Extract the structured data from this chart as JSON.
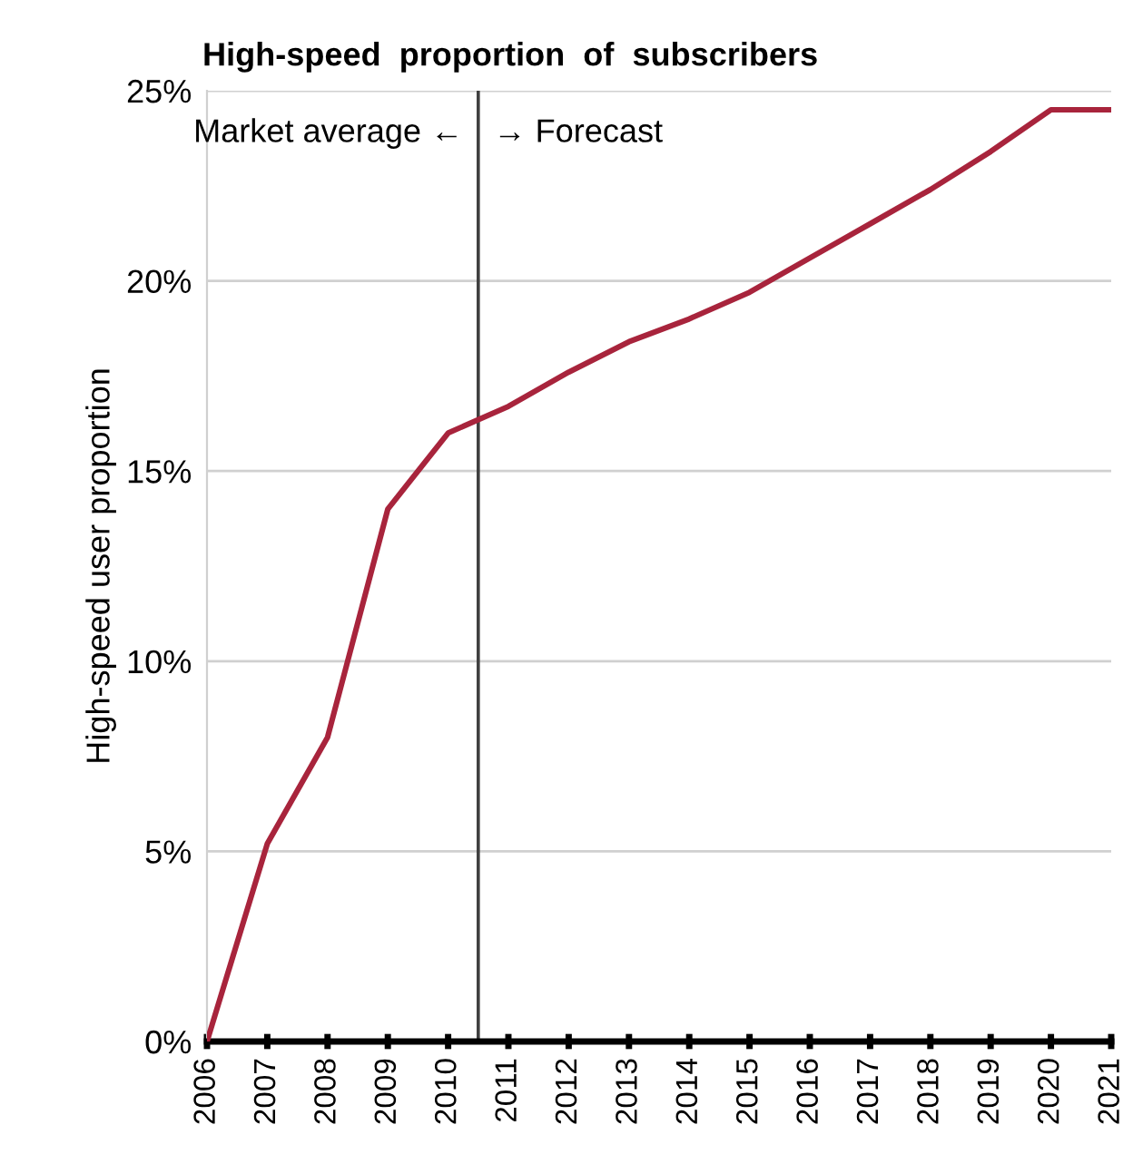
{
  "chart_data": {
    "type": "line",
    "title": "High-speed  proportion  of  subscribers",
    "ylabel": "High-speed user proportion",
    "x": [
      2006,
      2007,
      2008,
      2009,
      2010,
      2011,
      2012,
      2013,
      2014,
      2015,
      2016,
      2017,
      2018,
      2019,
      2020,
      2021
    ],
    "series": [
      {
        "color": "#a8243c",
        "values": [
          0,
          5.2,
          8.0,
          14.0,
          16.0,
          16.7,
          17.6,
          18.4,
          19.0,
          19.7,
          20.6,
          21.5,
          22.4,
          23.4,
          24.5,
          24.5
        ]
      }
    ],
    "xlim": [
      2006,
      2021
    ],
    "xticks": [
      2006,
      2007,
      2008,
      2009,
      2010,
      2011,
      2012,
      2013,
      2014,
      2015,
      2016,
      2017,
      2018,
      2019,
      2020,
      2021
    ],
    "ylim": [
      0,
      25
    ],
    "yticks": [
      {
        "value": 0,
        "label": "0%"
      },
      {
        "value": 5,
        "label": "5%"
      },
      {
        "value": 10,
        "label": "10%"
      },
      {
        "value": 15,
        "label": "15%"
      },
      {
        "value": 20,
        "label": "20%"
      },
      {
        "value": 25,
        "label": "25%"
      }
    ],
    "ref_lines": [
      {
        "axis": "x",
        "value": 2010.5,
        "color": "#404040"
      }
    ],
    "annotations": [
      "Market average ←",
      "→ Forecast"
    ],
    "grid": "y",
    "legend": false,
    "marker": "none",
    "line_style": "solid"
  }
}
